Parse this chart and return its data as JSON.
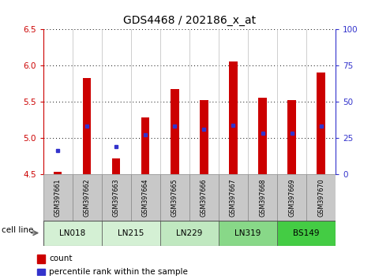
{
  "title": "GDS4468 / 202186_x_at",
  "samples": [
    "GSM397661",
    "GSM397662",
    "GSM397663",
    "GSM397664",
    "GSM397665",
    "GSM397666",
    "GSM397667",
    "GSM397668",
    "GSM397669",
    "GSM397670"
  ],
  "cell_line_info": [
    {
      "label": "LN018",
      "start": 0,
      "end": 1,
      "color": "#d4f0d4"
    },
    {
      "label": "LN215",
      "start": 2,
      "end": 3,
      "color": "#d4f0d4"
    },
    {
      "label": "LN229",
      "start": 4,
      "end": 5,
      "color": "#c0e8c0"
    },
    {
      "label": "LN319",
      "start": 6,
      "end": 7,
      "color": "#88d888"
    },
    {
      "label": "BS149",
      "start": 8,
      "end": 9,
      "color": "#44cc44"
    }
  ],
  "bar_bottom": 4.5,
  "bar_tops": [
    4.53,
    5.83,
    4.72,
    5.28,
    5.68,
    5.52,
    6.06,
    5.56,
    5.52,
    5.9
  ],
  "percentile_values": [
    4.83,
    5.17,
    4.88,
    5.05,
    5.17,
    5.12,
    5.18,
    5.07,
    5.07,
    5.17
  ],
  "ylim_left": [
    4.5,
    6.5
  ],
  "ylim_right": [
    0,
    100
  ],
  "yticks_left": [
    4.5,
    5.0,
    5.5,
    6.0,
    6.5
  ],
  "yticks_right": [
    0,
    25,
    50,
    75,
    100
  ],
  "bar_color": "#cc0000",
  "percentile_color": "#3333cc",
  "bar_width": 0.28,
  "left_tick_color": "#cc0000",
  "right_tick_color": "#3333cc",
  "sample_bg_color": "#c8c8c8",
  "title_fontsize": 10,
  "tick_fontsize": 7.5,
  "sample_fontsize": 5.8,
  "cellline_fontsize": 7.5,
  "legend_fontsize": 7.5
}
